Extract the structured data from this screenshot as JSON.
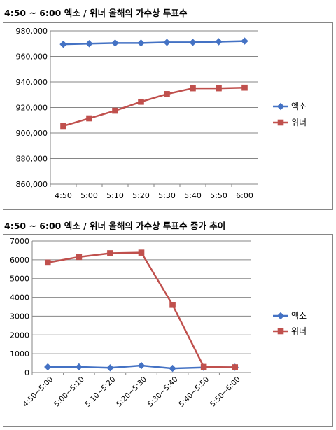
{
  "chart_data": [
    {
      "type": "line",
      "title": "4:50 ~ 6:00 엑소 / 위너 올해의 가수상 투표수",
      "categories": [
        "4:50",
        "5:00",
        "5:10",
        "5:20",
        "5:30",
        "5:40",
        "5:50",
        "6:00"
      ],
      "series": [
        {
          "name": "엑소",
          "color": "#4472C4",
          "marker": "diamond",
          "values": [
            969500,
            970000,
            970500,
            970500,
            971000,
            971000,
            971500,
            972000
          ]
        },
        {
          "name": "위너",
          "color": "#C0504D",
          "marker": "square",
          "values": [
            905500,
            911500,
            917500,
            924500,
            930500,
            935000,
            935000,
            935500
          ]
        }
      ],
      "yticks": [
        860000,
        880000,
        900000,
        920000,
        940000,
        960000,
        980000
      ],
      "ytick_labels": [
        "860,000",
        "880,000",
        "900,000",
        "920,000",
        "940,000",
        "960,000",
        "980,000"
      ],
      "ylim": [
        860000,
        980000
      ],
      "grid": true,
      "legend": "right"
    },
    {
      "type": "line",
      "title": "4:50 ~ 6:00 엑소 / 위너 올해의 가수상 투표수 증가 추이",
      "categories": [
        "4:50~5:00",
        "5:00~5:10",
        "5:10~5:20",
        "5:20~5:30",
        "5:30~5:40",
        "5:40~5:50",
        "5:50~6:00"
      ],
      "series": [
        {
          "name": "엑소",
          "color": "#4472C4",
          "marker": "diamond",
          "values": [
            300,
            300,
            250,
            370,
            220,
            270,
            280
          ]
        },
        {
          "name": "위너",
          "color": "#C0504D",
          "marker": "square",
          "values": [
            5850,
            6150,
            6350,
            6380,
            3600,
            300,
            280
          ]
        }
      ],
      "yticks": [
        0,
        1000,
        2000,
        3000,
        4000,
        5000,
        6000,
        7000
      ],
      "ytick_labels": [
        "0",
        "1000",
        "2000",
        "3000",
        "4000",
        "5000",
        "6000",
        "7000"
      ],
      "ylim": [
        0,
        7000
      ],
      "grid": true,
      "legend": "right"
    }
  ]
}
